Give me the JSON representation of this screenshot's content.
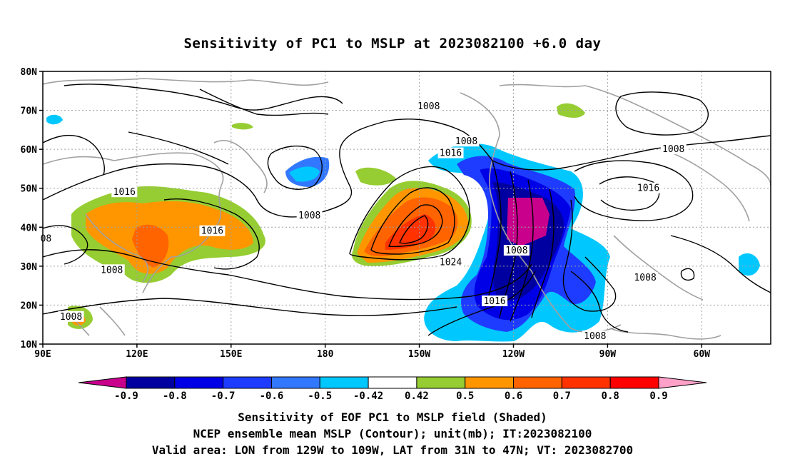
{
  "title": "Sensitivity of PC1 to MSLP at 2023082100 +6.0 day",
  "map": {
    "lat_labels": [
      "80N",
      "70N",
      "60N",
      "50N",
      "40N",
      "30N",
      "20N",
      "10N"
    ],
    "lon_labels": [
      "90E",
      "120E",
      "150E",
      "180",
      "150W",
      "120W",
      "90W",
      "60W"
    ],
    "lat_values": [
      80,
      70,
      60,
      50,
      40,
      30,
      20,
      10
    ],
    "lon_values": [
      90,
      120,
      150,
      180,
      210,
      240,
      270,
      300
    ],
    "lon_range": [
      90,
      322
    ],
    "lat_range": [
      10,
      80
    ],
    "contour_color": "#000000",
    "coast_color": "#a0a0a0",
    "grid_color": "#a0a0a0",
    "contour_labels": [
      {
        "text": "1008",
        "lon": 213,
        "lat": 71
      },
      {
        "text": "1008",
        "lon": 225,
        "lat": 62
      },
      {
        "text": "1016",
        "lon": 220,
        "lat": 59
      },
      {
        "text": "1008",
        "lon": 291,
        "lat": 60
      },
      {
        "text": "1016",
        "lon": 116,
        "lat": 49
      },
      {
        "text": "1016",
        "lon": 283,
        "lat": 50
      },
      {
        "text": "1008",
        "lon": 175,
        "lat": 43
      },
      {
        "text": "1016",
        "lon": 144,
        "lat": 39
      },
      {
        "text": "08",
        "lon": 91,
        "lat": 37
      },
      {
        "text": "1024",
        "lon": 220,
        "lat": 31
      },
      {
        "text": "1008",
        "lon": 241,
        "lat": 34
      },
      {
        "text": "1008",
        "lon": 282,
        "lat": 27
      },
      {
        "text": "1008",
        "lon": 112,
        "lat": 29
      },
      {
        "text": "1016",
        "lon": 234,
        "lat": 21
      },
      {
        "text": "1008",
        "lon": 266,
        "lat": 12
      },
      {
        "text": "1008",
        "lon": 99,
        "lat": 17
      }
    ]
  },
  "colorbar": {
    "labels": [
      "-0.9",
      "-0.8",
      "-0.7",
      "-0.6",
      "-0.5",
      "-0.42",
      "0.42",
      "0.5",
      "0.6",
      "0.7",
      "0.8",
      "0.9"
    ],
    "colors": [
      "#c8008c",
      "#0000a0",
      "#0000e6",
      "#1e3cff",
      "#3278ff",
      "#00c8ff",
      "#ffffff",
      "#96cd32",
      "#ff9600",
      "#ff6400",
      "#ff3200",
      "#ff0000",
      "#ffa0c8"
    ]
  },
  "captions": {
    "line1": "Sensitivity of EOF PC1 to MSLP field (Shaded)",
    "line2": "NCEP ensemble mean MSLP (Contour); unit(mb); IT:2023082100",
    "line3": "Valid area: LON from 129W to 109W, LAT from 31N to 47N; VT: 2023082700"
  }
}
